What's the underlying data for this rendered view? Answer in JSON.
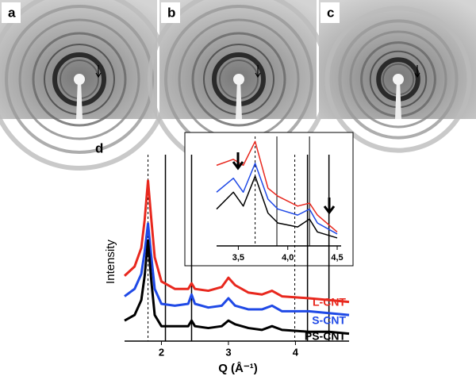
{
  "panels": {
    "a": "a",
    "b": "b",
    "c": "c",
    "d": "d"
  },
  "chart_data": [
    {
      "type": "line",
      "x_label": "Q (Å⁻¹)",
      "y_label": "Intensity",
      "x": [
        1.45,
        1.6,
        1.7,
        1.75,
        1.8,
        1.85,
        1.9,
        2.0,
        2.2,
        2.4,
        2.45,
        2.5,
        2.7,
        2.9,
        3.0,
        3.1,
        3.3,
        3.5,
        3.65,
        3.8,
        4.2,
        4.5,
        4.8
      ],
      "series": [
        {
          "name": "L-CNT",
          "color": "#e8281e",
          "values": [
            35,
            40,
            50,
            65,
            86,
            65,
            45,
            32,
            28,
            28,
            31,
            28,
            27,
            29,
            34,
            30,
            26,
            25,
            27,
            24,
            23,
            22,
            21
          ]
        },
        {
          "name": "S-CNT",
          "color": "#1f49e6",
          "values": [
            24,
            28,
            36,
            48,
            63,
            45,
            28,
            20,
            19,
            20,
            25,
            20,
            18,
            19,
            23,
            19,
            17,
            17,
            19,
            16,
            16,
            15,
            14
          ]
        },
        {
          "name": "PS-CNT",
          "color": "#000000",
          "values": [
            11,
            14,
            22,
            35,
            54,
            32,
            14,
            8,
            8,
            8,
            11,
            8,
            7,
            8,
            11,
            9,
            7,
            6,
            8,
            6,
            5,
            5,
            4
          ]
        }
      ],
      "xlim": [
        1.45,
        4.8
      ],
      "ylim": [
        0,
        100
      ],
      "xticks": [
        2,
        3,
        4
      ],
      "vlines": [
        2.06,
        2.45,
        4.18,
        4.5
      ],
      "dashed_vlines": [
        1.8,
        3.99
      ]
    },
    {
      "type": "line",
      "x": [
        3.28,
        3.45,
        3.55,
        3.67,
        3.8,
        3.9,
        4.1,
        4.22,
        4.3,
        4.5
      ],
      "series": [
        {
          "color": "#e8281e",
          "values": [
            81,
            87,
            81,
            105,
            58,
            50,
            40,
            43,
            31,
            14
          ]
        },
        {
          "color": "#1f49e6",
          "values": [
            54,
            68,
            54,
            83,
            47,
            37,
            31,
            37,
            23,
            12
          ]
        },
        {
          "color": "#000000",
          "values": [
            37,
            54,
            40,
            70,
            33,
            23,
            19,
            27,
            14,
            8
          ]
        }
      ],
      "xlim": [
        3.28,
        4.54
      ],
      "ylim": [
        0,
        110
      ],
      "xticks": [
        {
          "value": 3.5,
          "label": "3,5"
        },
        {
          "value": 4.0,
          "label": "4,0"
        },
        {
          "value": 4.5,
          "label": "4,5"
        }
      ],
      "vlines": [
        3.89,
        4.22
      ],
      "dashed_vlines": [
        3.67
      ]
    }
  ]
}
